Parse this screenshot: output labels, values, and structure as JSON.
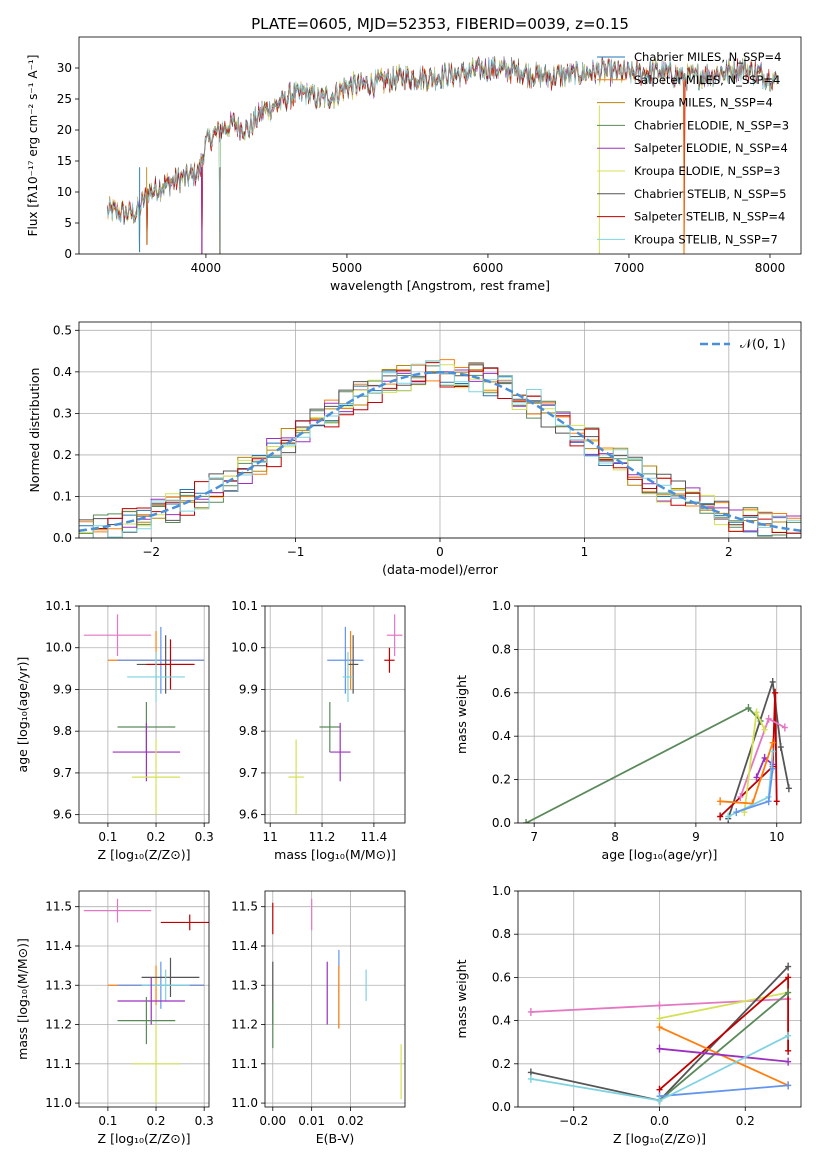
{
  "title": "PLATE=0605, MJD=52353, FIBERID=0039, z=0.15",
  "colors": [
    "#1f77b4",
    "#ff7f0e",
    "#b8860b",
    "#5a8a5a",
    "#9b30c0",
    "#d4e157",
    "#555555",
    "#c00000",
    "#7fd3e0",
    "#e377c2",
    "#6495ed"
  ],
  "chart_data": [
    {
      "id": "spectrum",
      "type": "line",
      "xlabel": "wavelength [Angstrom, rest frame]",
      "ylabel": "Flux [fλ10⁻¹⁷ erg cm⁻² s⁻¹ A⁻¹]",
      "xlim": [
        3100,
        8220
      ],
      "ylim": [
        0,
        35
      ],
      "xticks": [
        4000,
        5000,
        6000,
        7000,
        8000
      ],
      "yticks": [
        0,
        5,
        10,
        15,
        20,
        25,
        30
      ],
      "grid": false,
      "legend_position": "top-right",
      "continuum": {
        "x": [
          3300,
          3500,
          3600,
          3800,
          3950,
          4000,
          4100,
          4200,
          4300,
          4400,
          4500,
          4600,
          4700,
          4800,
          4900,
          5000,
          5200,
          5400,
          5600,
          5800,
          6000,
          6200,
          6400,
          6600,
          6800,
          7000,
          7200,
          7400,
          7600,
          7800,
          8000,
          8050
        ],
        "y": [
          7,
          6.5,
          10,
          12,
          13,
          18,
          20,
          21,
          20,
          23,
          24,
          25.5,
          26,
          25,
          25.5,
          27,
          27.5,
          28.5,
          28.5,
          29,
          30,
          29.5,
          28.5,
          29,
          29.5,
          29,
          29.5,
          28.5,
          29,
          30,
          28.5,
          28
        ]
      },
      "dips": [
        [
          3530,
          0.3
        ],
        [
          3580,
          1.5
        ],
        [
          3970,
          0
        ],
        [
          4100,
          0
        ],
        [
          7390,
          0
        ]
      ],
      "series": [
        {
          "name": "Chabrier MILES, N_SSP=4"
        },
        {
          "name": "Salpeter MILES, N_SSP=4"
        },
        {
          "name": "Kroupa MILES, N_SSP=4"
        },
        {
          "name": "Chabrier ELODIE, N_SSP=3"
        },
        {
          "name": "Salpeter ELODIE, N_SSP=4"
        },
        {
          "name": "Kroupa ELODIE, N_SSP=3"
        },
        {
          "name": "Chabrier STELIB, N_SSP=5"
        },
        {
          "name": "Salpeter STELIB, N_SSP=4"
        },
        {
          "name": "Kroupa STELIB, N_SSP=7"
        }
      ]
    },
    {
      "id": "residuals",
      "type": "line",
      "xlabel": "(data-model)/error",
      "ylabel": "Normed distribution",
      "xlim": [
        -2.5,
        2.5
      ],
      "ylim": [
        0,
        0.52
      ],
      "xticks": [
        -2,
        -1,
        0,
        1,
        2
      ],
      "yticks": [
        0.0,
        0.1,
        0.2,
        0.3,
        0.4,
        0.5
      ],
      "grid": true,
      "bins": {
        "start": -2.5,
        "width": 0.1
      },
      "legend_position": "top-right",
      "series": [
        {
          "name": "𝒩(0, 1)",
          "style": "dashed",
          "kind": "gaussian",
          "mu": 0,
          "sigma": 1
        }
      ]
    },
    {
      "id": "age-vs-Z",
      "type": "scatter",
      "xlabel": "Z [log₁₀(Z/Z⊙)]",
      "ylabel": "age  [log₁₀(age/yr)]",
      "xlim": [
        0.04,
        0.31
      ],
      "ylim": [
        9.58,
        10.1
      ],
      "xticks": [
        0.1,
        0.2,
        0.3
      ],
      "yticks": [
        9.6,
        9.7,
        9.8,
        9.9,
        10.0,
        10.1
      ],
      "grid": true,
      "points": [
        {
          "x": 0.12,
          "y": 10.03,
          "xerr": 0.07,
          "yerr": 0.05,
          "color": "#e377c2"
        },
        {
          "x": 0.2,
          "y": 9.97,
          "xerr": 0.1,
          "yerr": 0.07,
          "color": "#ff7f0e"
        },
        {
          "x": 0.21,
          "y": 9.97,
          "xerr": 0.09,
          "yerr": 0.08,
          "color": "#6495ed"
        },
        {
          "x": 0.22,
          "y": 9.96,
          "xerr": 0.06,
          "yerr": 0.07,
          "color": "#555555"
        },
        {
          "x": 0.23,
          "y": 9.96,
          "xerr": 0.05,
          "yerr": 0.06,
          "color": "#c00000"
        },
        {
          "x": 0.2,
          "y": 9.93,
          "xerr": 0.06,
          "yerr": 0.06,
          "color": "#7fd3e0"
        },
        {
          "x": 0.18,
          "y": 9.81,
          "xerr": 0.06,
          "yerr": 0.06,
          "color": "#5a8a5a"
        },
        {
          "x": 0.18,
          "y": 9.75,
          "xerr": 0.07,
          "yerr": 0.07,
          "color": "#9b30c0"
        },
        {
          "x": 0.2,
          "y": 9.69,
          "xerr": 0.05,
          "yerr": 0.09,
          "color": "#d4e157"
        }
      ]
    },
    {
      "id": "age-vs-mass",
      "type": "scatter",
      "xlabel": "mass [log₁₀(M/M⊙)]",
      "ylabel": "",
      "xlim": [
        10.98,
        11.52
      ],
      "ylim": [
        9.58,
        10.1
      ],
      "xticks": [
        11.0,
        11.2,
        11.4
      ],
      "yticks": [
        9.6,
        9.7,
        9.8,
        9.9,
        10.0,
        10.1
      ],
      "grid": true,
      "points": [
        {
          "x": 11.48,
          "y": 10.03,
          "xerr": 0.03,
          "yerr": 0.05,
          "color": "#e377c2"
        },
        {
          "x": 11.46,
          "y": 9.97,
          "xerr": 0.02,
          "yerr": 0.03,
          "color": "#c00000"
        },
        {
          "x": 11.31,
          "y": 9.97,
          "xerr": 0.02,
          "yerr": 0.07,
          "color": "#ff7f0e"
        },
        {
          "x": 11.29,
          "y": 9.97,
          "xerr": 0.07,
          "yerr": 0.08,
          "color": "#6495ed"
        },
        {
          "x": 11.32,
          "y": 9.96,
          "xerr": 0.02,
          "yerr": 0.07,
          "color": "#555555"
        },
        {
          "x": 11.3,
          "y": 9.93,
          "xerr": 0.02,
          "yerr": 0.06,
          "color": "#7fd3e0"
        },
        {
          "x": 11.23,
          "y": 9.81,
          "xerr": 0.04,
          "yerr": 0.06,
          "color": "#5a8a5a"
        },
        {
          "x": 11.27,
          "y": 9.75,
          "xerr": 0.04,
          "yerr": 0.07,
          "color": "#9b30c0"
        },
        {
          "x": 11.1,
          "y": 9.69,
          "xerr": 0.03,
          "yerr": 0.09,
          "color": "#d4e157"
        }
      ]
    },
    {
      "id": "mass-weight-vs-age",
      "type": "line",
      "xlabel": "age  [log₁₀(age/yr)]",
      "ylabel": "mass weight",
      "xlim": [
        6.8,
        10.3
      ],
      "ylim": [
        0,
        1
      ],
      "xticks": [
        7,
        8,
        9,
        10
      ],
      "yticks": [
        0.0,
        0.2,
        0.4,
        0.6,
        0.8,
        1.0
      ],
      "grid": true,
      "series": [
        {
          "color": "#5a8a5a",
          "x": [
            6.9,
            9.65,
            9.8
          ],
          "y": [
            0.0,
            0.53,
            0.47
          ]
        },
        {
          "color": "#555555",
          "x": [
            9.4,
            9.95,
            10.05,
            10.15
          ],
          "y": [
            0.02,
            0.65,
            0.35,
            0.16
          ]
        },
        {
          "color": "#c00000",
          "x": [
            9.3,
            9.95,
            9.98,
            10.0
          ],
          "y": [
            0.03,
            0.26,
            0.6,
            0.1
          ]
        },
        {
          "color": "#e377c2",
          "x": [
            9.55,
            9.9,
            10.1
          ],
          "y": [
            0.12,
            0.48,
            0.44
          ]
        },
        {
          "color": "#d4e157",
          "x": [
            9.6,
            9.75,
            9.85
          ],
          "y": [
            0.05,
            0.51,
            0.43
          ]
        },
        {
          "color": "#9b30c0",
          "x": [
            9.75,
            9.85,
            9.95
          ],
          "y": [
            0.21,
            0.3,
            0.27
          ]
        },
        {
          "color": "#ff7f0e",
          "x": [
            9.3,
            9.7,
            9.95
          ],
          "y": [
            0.1,
            0.09,
            0.37
          ]
        },
        {
          "color": "#7fd3e0",
          "x": [
            9.4,
            9.9,
            9.95
          ],
          "y": [
            0.03,
            0.12,
            0.33
          ]
        },
        {
          "color": "#6495ed",
          "x": [
            9.5,
            9.9,
            9.95
          ],
          "y": [
            0.05,
            0.1,
            0.25
          ]
        }
      ]
    },
    {
      "id": "mass-vs-Z",
      "type": "scatter",
      "xlabel": "Z [log₁₀(Z/Z⊙)]",
      "ylabel": "mass [log₁₀(M/M⊙)]",
      "xlim": [
        0.04,
        0.31
      ],
      "ylim": [
        10.99,
        11.54
      ],
      "xticks": [
        0.1,
        0.2,
        0.3
      ],
      "yticks": [
        11.0,
        11.1,
        11.2,
        11.3,
        11.4,
        11.5
      ],
      "grid": true,
      "points": [
        {
          "x": 0.12,
          "y": 11.49,
          "xerr": 0.07,
          "yerr": 0.03,
          "color": "#e377c2"
        },
        {
          "x": 0.27,
          "y": 11.46,
          "xerr": 0.06,
          "yerr": 0.02,
          "color": "#c00000"
        },
        {
          "x": 0.2,
          "y": 11.3,
          "xerr": 0.1,
          "yerr": 0.05,
          "color": "#ff7f0e"
        },
        {
          "x": 0.21,
          "y": 11.3,
          "xerr": 0.09,
          "yerr": 0.06,
          "color": "#6495ed"
        },
        {
          "x": 0.23,
          "y": 11.32,
          "xerr": 0.06,
          "yerr": 0.05,
          "color": "#555555"
        },
        {
          "x": 0.22,
          "y": 11.3,
          "xerr": 0.05,
          "yerr": 0.04,
          "color": "#7fd3e0"
        },
        {
          "x": 0.19,
          "y": 11.26,
          "xerr": 0.07,
          "yerr": 0.06,
          "color": "#9b30c0"
        },
        {
          "x": 0.18,
          "y": 11.21,
          "xerr": 0.06,
          "yerr": 0.06,
          "color": "#5a8a5a"
        },
        {
          "x": 0.2,
          "y": 11.1,
          "xerr": 0.05,
          "yerr": 0.1,
          "color": "#d4e157"
        }
      ]
    },
    {
      "id": "mass-vs-EBV",
      "type": "scatter",
      "xlabel": "E(B-V)",
      "ylabel": "",
      "xlim": [
        -0.002,
        0.034
      ],
      "ylim": [
        10.99,
        11.54
      ],
      "xticks": [
        0.0,
        0.01,
        0.02
      ],
      "xticklabels": [
        "0.00",
        "0.01",
        "0.02"
      ],
      "yticks": [
        11.0,
        11.1,
        11.2,
        11.3,
        11.4,
        11.5
      ],
      "grid": true,
      "points": [
        {
          "x": 0.0,
          "y": 11.47,
          "xerr": 0,
          "yerr": 0.04,
          "color": "#c00000"
        },
        {
          "x": 0.01,
          "y": 11.48,
          "xerr": 0,
          "yerr": 0.04,
          "color": "#e377c2"
        },
        {
          "x": 0.0,
          "y": 11.28,
          "xerr": 0,
          "yerr": 0.08,
          "color": "#555555"
        },
        {
          "x": 0.0,
          "y": 11.2,
          "xerr": 0,
          "yerr": 0.06,
          "color": "#5a8a5a"
        },
        {
          "x": 0.014,
          "y": 11.28,
          "xerr": 0,
          "yerr": 0.08,
          "color": "#9b30c0"
        },
        {
          "x": 0.017,
          "y": 11.29,
          "xerr": 0,
          "yerr": 0.1,
          "color": "#6495ed"
        },
        {
          "x": 0.017,
          "y": 11.27,
          "xerr": 0,
          "yerr": 0.08,
          "color": "#ff7f0e"
        },
        {
          "x": 0.024,
          "y": 11.3,
          "xerr": 0,
          "yerr": 0.04,
          "color": "#7fd3e0"
        },
        {
          "x": 0.033,
          "y": 11.08,
          "xerr": 0,
          "yerr": 0.07,
          "color": "#d4e157"
        }
      ]
    },
    {
      "id": "mass-weight-vs-Z",
      "type": "line",
      "xlabel": "Z [log₁₀(Z/Z⊙)]",
      "ylabel": "mass weight",
      "xlim": [
        -0.33,
        0.33
      ],
      "ylim": [
        0,
        1
      ],
      "xticks": [
        -0.2,
        0.0,
        0.2
      ],
      "xticklabels": [
        "−0.2",
        "0.0",
        "0.2"
      ],
      "yticks": [
        0.0,
        0.2,
        0.4,
        0.6,
        0.8,
        1.0
      ],
      "grid": true,
      "series": [
        {
          "color": "#e377c2",
          "x": [
            -0.3,
            0.0,
            0.3
          ],
          "y": [
            0.44,
            0.47,
            0.5
          ]
        },
        {
          "color": "#d4e157",
          "x": [
            0.0,
            0.3
          ],
          "y": [
            0.41,
            0.53
          ]
        },
        {
          "color": "#555555",
          "x": [
            -0.3,
            0.0,
            0.3
          ],
          "y": [
            0.16,
            0.03,
            0.65
          ]
        },
        {
          "color": "#c00000",
          "x": [
            0.0,
            0.3,
            0.3
          ],
          "y": [
            0.08,
            0.6,
            0.26
          ]
        },
        {
          "color": "#5a8a5a",
          "x": [
            0.0,
            0.3
          ],
          "y": [
            0.03,
            0.53
          ]
        },
        {
          "color": "#ff7f0e",
          "x": [
            0.0,
            0.3
          ],
          "y": [
            0.37,
            0.1
          ]
        },
        {
          "color": "#9b30c0",
          "x": [
            0.0,
            0.3
          ],
          "y": [
            0.27,
            0.21
          ]
        },
        {
          "color": "#6495ed",
          "x": [
            0.0,
            0.3
          ],
          "y": [
            0.05,
            0.1
          ]
        },
        {
          "color": "#7fd3e0",
          "x": [
            -0.3,
            0.0,
            0.3
          ],
          "y": [
            0.13,
            0.03,
            0.33
          ]
        }
      ]
    }
  ]
}
